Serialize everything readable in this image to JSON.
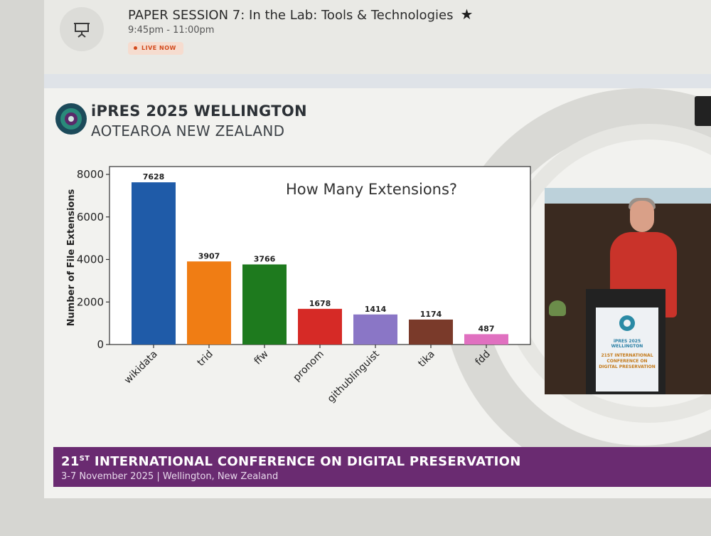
{
  "session": {
    "title": "PAPER SESSION 7: In the Lab: Tools & Technologies",
    "time": "9:45pm - 11:00pm",
    "live_badge": "LIVE NOW",
    "session_icon": "presentation-board-icon",
    "favorite_icon": "star-icon"
  },
  "slide": {
    "conference_name": "iPRES 2025 WELLINGTON",
    "conference_place": "AOTEAROA NEW ZEALAND",
    "footer_title_prefix": "21",
    "footer_title_suffix": "ST",
    "footer_title_rest": " INTERNATIONAL CONFERENCE ON DIGITAL PRESERVATION",
    "footer_subtitle": "3-7 November 2025  |  Wellington, New Zealand",
    "lectern_line1": "iPRES 2025 WELLINGTON",
    "lectern_line2": "21ST INTERNATIONAL",
    "lectern_line3": "CONFERENCE ON",
    "lectern_line4": "DIGITAL PRESERVATION"
  },
  "chart_data": {
    "type": "bar",
    "title": "How Many Extensions?",
    "xlabel": "",
    "ylabel": "Number of File Extensions",
    "categories": [
      "wikidata",
      "trid",
      "ffw",
      "pronom",
      "githublinguist",
      "tika",
      "fdd"
    ],
    "values": [
      7628,
      3907,
      3766,
      1678,
      1414,
      1174,
      487
    ],
    "colors": [
      "#1f5ba8",
      "#f07d14",
      "#1e7a1e",
      "#d62a26",
      "#8a76c6",
      "#7a3a2a",
      "#e070c0"
    ],
    "yticks": [
      0,
      2000,
      4000,
      6000,
      8000
    ],
    "ylim": [
      0,
      8000
    ],
    "grid": false,
    "legend": "none"
  },
  "colors": {
    "footer_band": "#6a2b71",
    "live_badge": "#d24a1c"
  }
}
